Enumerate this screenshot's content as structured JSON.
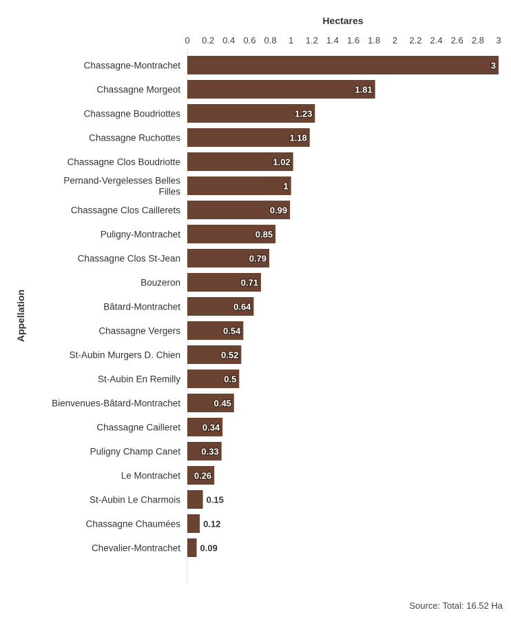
{
  "chart_data": {
    "type": "bar",
    "orientation": "horizontal",
    "xlabel": "Hectares",
    "ylabel": "Appellation",
    "xlim": [
      0,
      3
    ],
    "x_ticks": [
      "0",
      "0.2",
      "0.4",
      "0.6",
      "0.8",
      "1",
      "1.2",
      "1.4",
      "1.6",
      "1.8",
      "2",
      "2.2",
      "2.4",
      "2.6",
      "2.8",
      "3"
    ],
    "x_axis_position": "top",
    "grid": false,
    "bar_color": "#6b4333",
    "categories": [
      [
        "Chassagne-Montrachet"
      ],
      [
        "Chassagne Morgeot"
      ],
      [
        "Chassagne Boudriottes"
      ],
      [
        "Chassagne Ruchottes"
      ],
      [
        "Chassagne Clos Boudriotte"
      ],
      [
        "Pernand-Vergelesses Belles",
        "Filles"
      ],
      [
        "Chassagne Clos Caillerets"
      ],
      [
        "Puligny-Montrachet"
      ],
      [
        "Chassagne Clos St-Jean"
      ],
      [
        "Bouzeron"
      ],
      [
        "Bâtard-Montrachet"
      ],
      [
        "Chassagne Vergers"
      ],
      [
        "St-Aubin Murgers D. Chien"
      ],
      [
        "St-Aubin En Remilly"
      ],
      [
        "Bienvenues-Bâtard-Montrachet"
      ],
      [
        "Chassagne Cailleret"
      ],
      [
        "Puligny Champ Canet"
      ],
      [
        "Le Montrachet"
      ],
      [
        "St-Aubin Le Charmois"
      ],
      [
        "Chassagne Chaumées"
      ],
      [
        "Chevalier-Montrachet"
      ]
    ],
    "values": [
      3,
      1.81,
      1.23,
      1.18,
      1.02,
      1,
      0.99,
      0.85,
      0.79,
      0.71,
      0.64,
      0.54,
      0.52,
      0.5,
      0.45,
      0.34,
      0.33,
      0.26,
      0.15,
      0.12,
      0.09
    ],
    "value_labels": [
      "3",
      "1.81",
      "1.23",
      "1.18",
      "1.02",
      "1",
      "0.99",
      "0.85",
      "0.79",
      "0.71",
      "0.64",
      "0.54",
      "0.52",
      "0.5",
      "0.45",
      "0.34",
      "0.33",
      "0.26",
      "0.15",
      "0.12",
      "0.09"
    ]
  },
  "footer": {
    "source": "Source: Total: 16.52 Ha"
  }
}
